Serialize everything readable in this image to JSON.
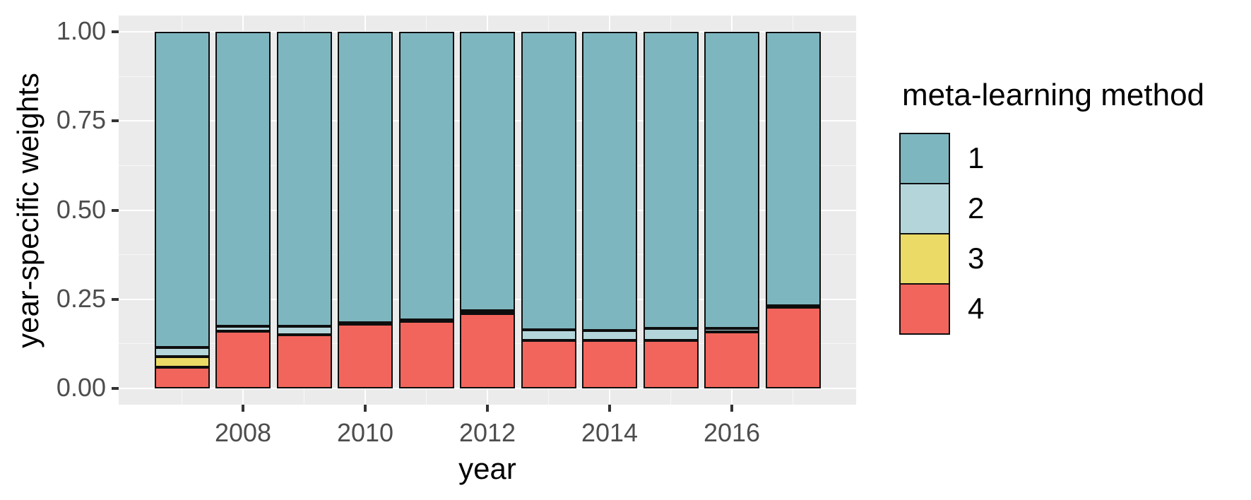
{
  "chart_data": {
    "type": "bar",
    "stacked": true,
    "orientation": "vertical",
    "title": "",
    "xlabel": "year",
    "ylabel": "year-specific weights",
    "categories": [
      2007,
      2008,
      2009,
      2010,
      2011,
      2012,
      2013,
      2014,
      2015,
      2016,
      2017
    ],
    "series": [
      {
        "name": "1",
        "color": "#7EB6BF",
        "values": [
          0.885,
          0.825,
          0.825,
          0.815,
          0.807,
          0.783,
          0.835,
          0.838,
          0.832,
          0.832,
          0.768
        ]
      },
      {
        "name": "2",
        "color": "#B4D6DB",
        "values": [
          0.025,
          0.015,
          0.025,
          0.005,
          0.003,
          0.004,
          0.03,
          0.027,
          0.033,
          0.01,
          0.002
        ]
      },
      {
        "name": "3",
        "color": "#EBDA66",
        "values": [
          0.03,
          0,
          0,
          0,
          0,
          0.003,
          0,
          0,
          0,
          0,
          0
        ]
      },
      {
        "name": "4",
        "color": "#F2655C",
        "values": [
          0.06,
          0.16,
          0.15,
          0.18,
          0.19,
          0.21,
          0.135,
          0.135,
          0.135,
          0.158,
          0.23
        ]
      }
    ],
    "stack_order_bottom_to_top": [
      "4",
      "3",
      "2",
      "1"
    ],
    "ylim": [
      0,
      1
    ],
    "grid": "on",
    "y_ticks": [
      {
        "label": "1.00",
        "value": 1.0
      },
      {
        "label": "0.75",
        "value": 0.75
      },
      {
        "label": "0.50",
        "value": 0.5
      },
      {
        "label": "0.25",
        "value": 0.25
      },
      {
        "label": "0.00",
        "value": 0.0
      }
    ],
    "y_minor_ticks": [
      0.125,
      0.375,
      0.625,
      0.875
    ],
    "x_ticks": [
      {
        "label": "2008",
        "category": 2008
      },
      {
        "label": "2010",
        "category": 2010
      },
      {
        "label": "2012",
        "category": 2012
      },
      {
        "label": "2014",
        "category": 2014
      },
      {
        "label": "2016",
        "category": 2016
      }
    ],
    "x_minor_categories": [
      2007,
      2009,
      2011,
      2013,
      2015,
      2017
    ],
    "legend": {
      "title": "meta-learning method",
      "position": "right",
      "entries": [
        {
          "label": "1",
          "color": "#7EB6BF"
        },
        {
          "label": "2",
          "color": "#B4D6DB"
        },
        {
          "label": "3",
          "color": "#EBDA66"
        },
        {
          "label": "4",
          "color": "#F2655C"
        }
      ]
    },
    "style": {
      "panel_bg": "#EBEBEB",
      "grid_major": "#FFFFFF",
      "bar_border": "#0e0e0e",
      "tick_label_color": "#4D4D4D",
      "text_color": "#000000"
    }
  }
}
